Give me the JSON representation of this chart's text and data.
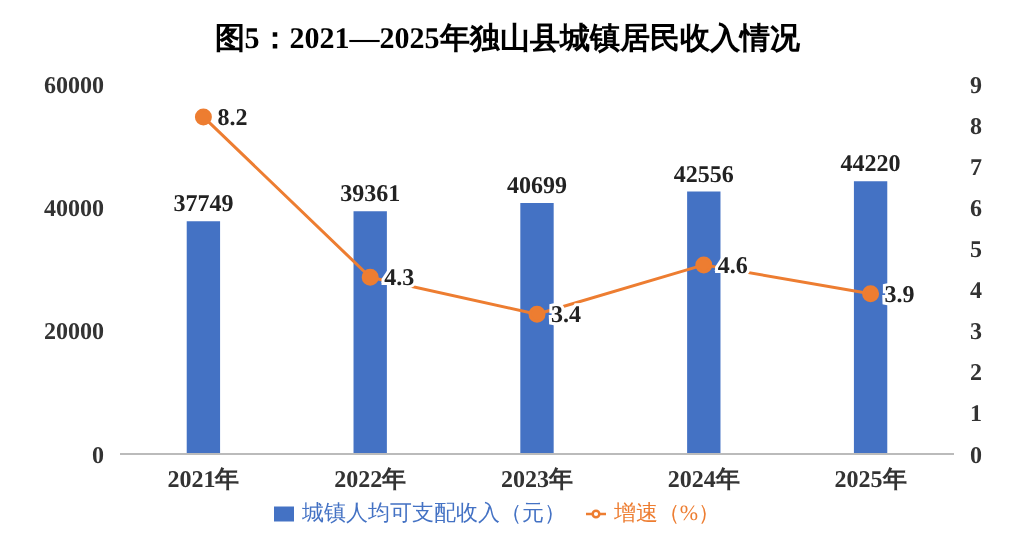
{
  "chart_data": {
    "type": "bar",
    "title": "图5：2021—2025年独山县城镇居民收入情况",
    "categories": [
      "2021年",
      "2022年",
      "2023年",
      "2024年",
      "2025年"
    ],
    "series": [
      {
        "name": "城镇人均可支配收入（元）",
        "color": "#4472c4",
        "values": [
          37749,
          39361,
          40699,
          42556,
          44220
        ]
      },
      {
        "name": "增速（%）",
        "type": "line",
        "axis": "y2",
        "color": "#ed7d31",
        "values": [
          8.2,
          4.3,
          3.4,
          4.6,
          3.9
        ]
      }
    ],
    "ylim": [
      0,
      60000
    ],
    "yticks": [
      0,
      20000,
      40000,
      60000
    ],
    "y2lim": [
      0,
      9
    ],
    "y2ticks": [
      0,
      1,
      2,
      3,
      4,
      5,
      6,
      7,
      8,
      9
    ],
    "legend": "bottom",
    "marker": "circle",
    "data_labels": true
  }
}
